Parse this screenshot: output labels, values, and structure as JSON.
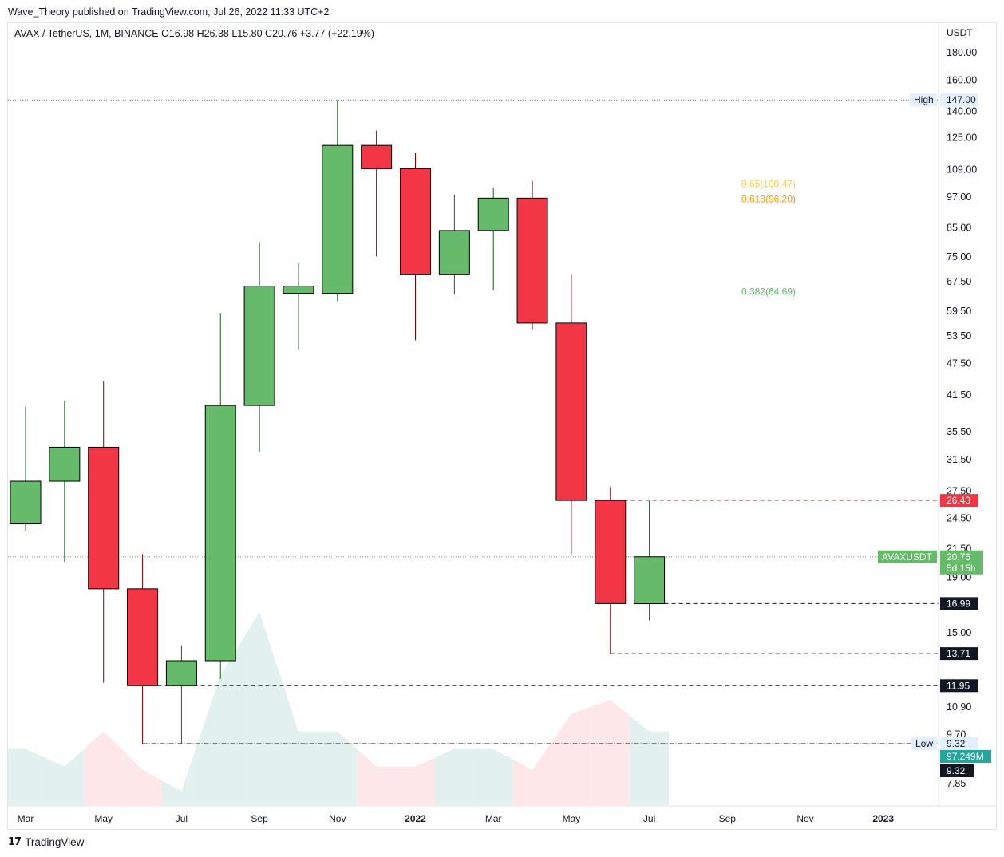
{
  "header": {
    "attribution": "Wave_Theory published on TradingView.com, Jul 26, 2022 11:33 UTC+2",
    "legend": "AVAX / TetherUS, 1M, BINANCE  O16.98  H26.38  L15.80  C20.76  +3.77 (+22.19%)"
  },
  "footer": {
    "brand": "TradingView",
    "brand_icon": "tradingview-logo-icon"
  },
  "colors": {
    "up": "#66bb6a",
    "down": "#f23645",
    "vol_up": "#e2f1ef",
    "vol_down": "#fde7e8",
    "fib_065": "#f7d154",
    "fib_0618": "#ff9800",
    "fib_0382": "#66bb6a",
    "dark": "#131722"
  },
  "chart_data": {
    "type": "candlestick",
    "symbol": "AVAX / TetherUS",
    "interval": "1M",
    "exchange": "BINANCE",
    "currency_label": "USDT",
    "y_scale": "log",
    "ylim": [
      7.3,
      210
    ],
    "y_ticks": [
      "180.00",
      "160.00",
      "140.00",
      "125.00",
      "109.00",
      "97.00",
      "85.00",
      "75.00",
      "67.50",
      "59.50",
      "53.50",
      "47.50",
      "41.50",
      "35.50",
      "31.50",
      "27.50",
      "24.50",
      "21.50",
      "19.00",
      "15.00",
      "10.90",
      "9.70",
      "7.85"
    ],
    "x_ticks": [
      "Mar",
      "May",
      "Jul",
      "Sep",
      "Nov",
      "2022",
      "Mar",
      "May",
      "Jul",
      "Sep",
      "Nov",
      "2023"
    ],
    "candles": [
      {
        "month": "2021-03",
        "open": 23.9,
        "high": 39.5,
        "low": 23.2,
        "close": 28.7
      },
      {
        "month": "2021-04",
        "open": 28.7,
        "high": 40.5,
        "low": 20.3,
        "close": 33.2
      },
      {
        "month": "2021-05",
        "open": 33.2,
        "high": 44.0,
        "low": 12.1,
        "close": 18.1
      },
      {
        "month": "2021-06",
        "open": 18.1,
        "high": 21.0,
        "low": 9.32,
        "close": 11.95
      },
      {
        "month": "2021-07",
        "open": 11.95,
        "high": 14.2,
        "low": 9.32,
        "close": 13.3
      },
      {
        "month": "2021-08",
        "open": 13.3,
        "high": 59.0,
        "low": 12.3,
        "close": 39.7
      },
      {
        "month": "2021-09",
        "open": 39.7,
        "high": 80.0,
        "low": 32.5,
        "close": 66.2
      },
      {
        "month": "2021-10",
        "open": 64.2,
        "high": 73.0,
        "low": 50.5,
        "close": 66.2
      },
      {
        "month": "2021-11",
        "open": 64.2,
        "high": 147.0,
        "low": 62.0,
        "close": 121.0
      },
      {
        "month": "2021-12",
        "open": 121.0,
        "high": 129.0,
        "low": 75.2,
        "close": 109.5
      },
      {
        "month": "2022-01",
        "open": 109.5,
        "high": 117.0,
        "low": 52.5,
        "close": 69.5
      },
      {
        "month": "2022-02",
        "open": 69.5,
        "high": 98.0,
        "low": 64.0,
        "close": 84.0
      },
      {
        "month": "2022-03",
        "open": 84.0,
        "high": 101.0,
        "low": 65.0,
        "close": 96.5
      },
      {
        "month": "2022-04",
        "open": 96.5,
        "high": 104.0,
        "low": 55.0,
        "close": 56.5
      },
      {
        "month": "2022-05",
        "open": 56.5,
        "high": 69.5,
        "low": 21.0,
        "close": 26.43
      },
      {
        "month": "2022-06",
        "open": 26.43,
        "high": 28.0,
        "low": 13.71,
        "close": 16.99
      },
      {
        "month": "2022-07",
        "open": 16.98,
        "high": 26.38,
        "low": 15.8,
        "close": 20.76
      }
    ],
    "volume_relative": [
      0.16,
      0.11,
      0.21,
      0.1,
      0.04,
      0.37,
      0.55,
      0.21,
      0.21,
      0.11,
      0.11,
      0.16,
      0.16,
      0.1,
      0.26,
      0.3,
      0.21
    ],
    "fib_levels": [
      {
        "label": "0.65(100.47)",
        "value": 100.47
      },
      {
        "label": "0.618(96.20)",
        "value": 96.2
      },
      {
        "label": "0.382(64.69)",
        "value": 64.69
      }
    ],
    "horizontal_levels": [
      {
        "label": "High",
        "value": 147.0,
        "text": "147.00",
        "style": "dotted-gray"
      },
      {
        "label": "",
        "value": 26.43,
        "text": "26.43",
        "style": "dashed-red"
      },
      {
        "label": "",
        "value": 16.99,
        "text": "16.99",
        "style": "dashed-black"
      },
      {
        "label": "",
        "value": 13.71,
        "text": "13.71",
        "style": "dashed-black"
      },
      {
        "label": "",
        "value": 11.95,
        "text": "11.95",
        "style": "dashed-black"
      },
      {
        "label": "Low",
        "value": 9.32,
        "text": "9.32",
        "style": "dashdot-black"
      }
    ],
    "last_price": {
      "symbol_label": "AVAXUSDT",
      "value": 20.76,
      "text": "20.76",
      "countdown": "5d 15h"
    },
    "volume_label": {
      "text": "97.249M",
      "value_label": "9.32"
    }
  }
}
